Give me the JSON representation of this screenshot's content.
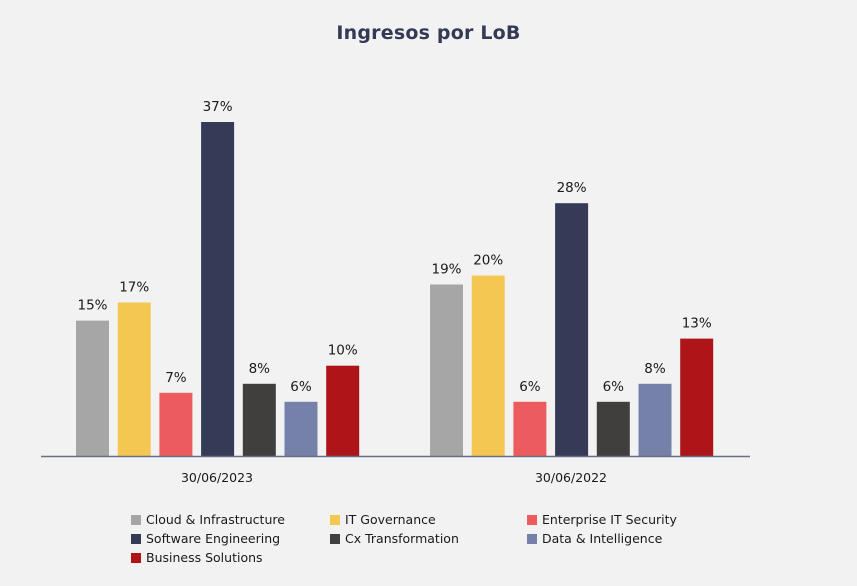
{
  "chart_data": {
    "type": "bar",
    "title": "Ingresos por LoB",
    "categories": [
      "30/06/2023",
      "30/06/2022"
    ],
    "series": [
      {
        "name": "Cloud & Infrastructure",
        "color": "#a6a6a6",
        "values": [
          15,
          19
        ],
        "labels": [
          "15%",
          "19%"
        ]
      },
      {
        "name": "IT Governance",
        "color": "#f4c752",
        "values": [
          17,
          20
        ],
        "labels": [
          "17%",
          "20%"
        ]
      },
      {
        "name": "Enterprise IT Security",
        "color": "#ec5b5d",
        "values": [
          7,
          6
        ],
        "labels": [
          "7%",
          "6%"
        ]
      },
      {
        "name": "Software Engineering",
        "color": "#353b57",
        "values": [
          37,
          28
        ],
        "labels": [
          "37%",
          "28%"
        ]
      },
      {
        "name": "Cx Transformation",
        "color": "#403f3d",
        "values": [
          8,
          6
        ],
        "labels": [
          "8%",
          "6%"
        ]
      },
      {
        "name": "Data & Intelligence",
        "color": "#7681a9",
        "values": [
          6,
          8
        ],
        "labels": [
          "6%",
          "8%"
        ]
      },
      {
        "name": "Business Solutions",
        "color": "#ad1518",
        "values": [
          10,
          13
        ],
        "labels": [
          "10%",
          "13%"
        ]
      }
    ],
    "xlabel": "",
    "ylabel": "",
    "ylim": [
      0,
      40
    ],
    "grid": false,
    "legend_position": "bottom",
    "value_format": "percent"
  }
}
